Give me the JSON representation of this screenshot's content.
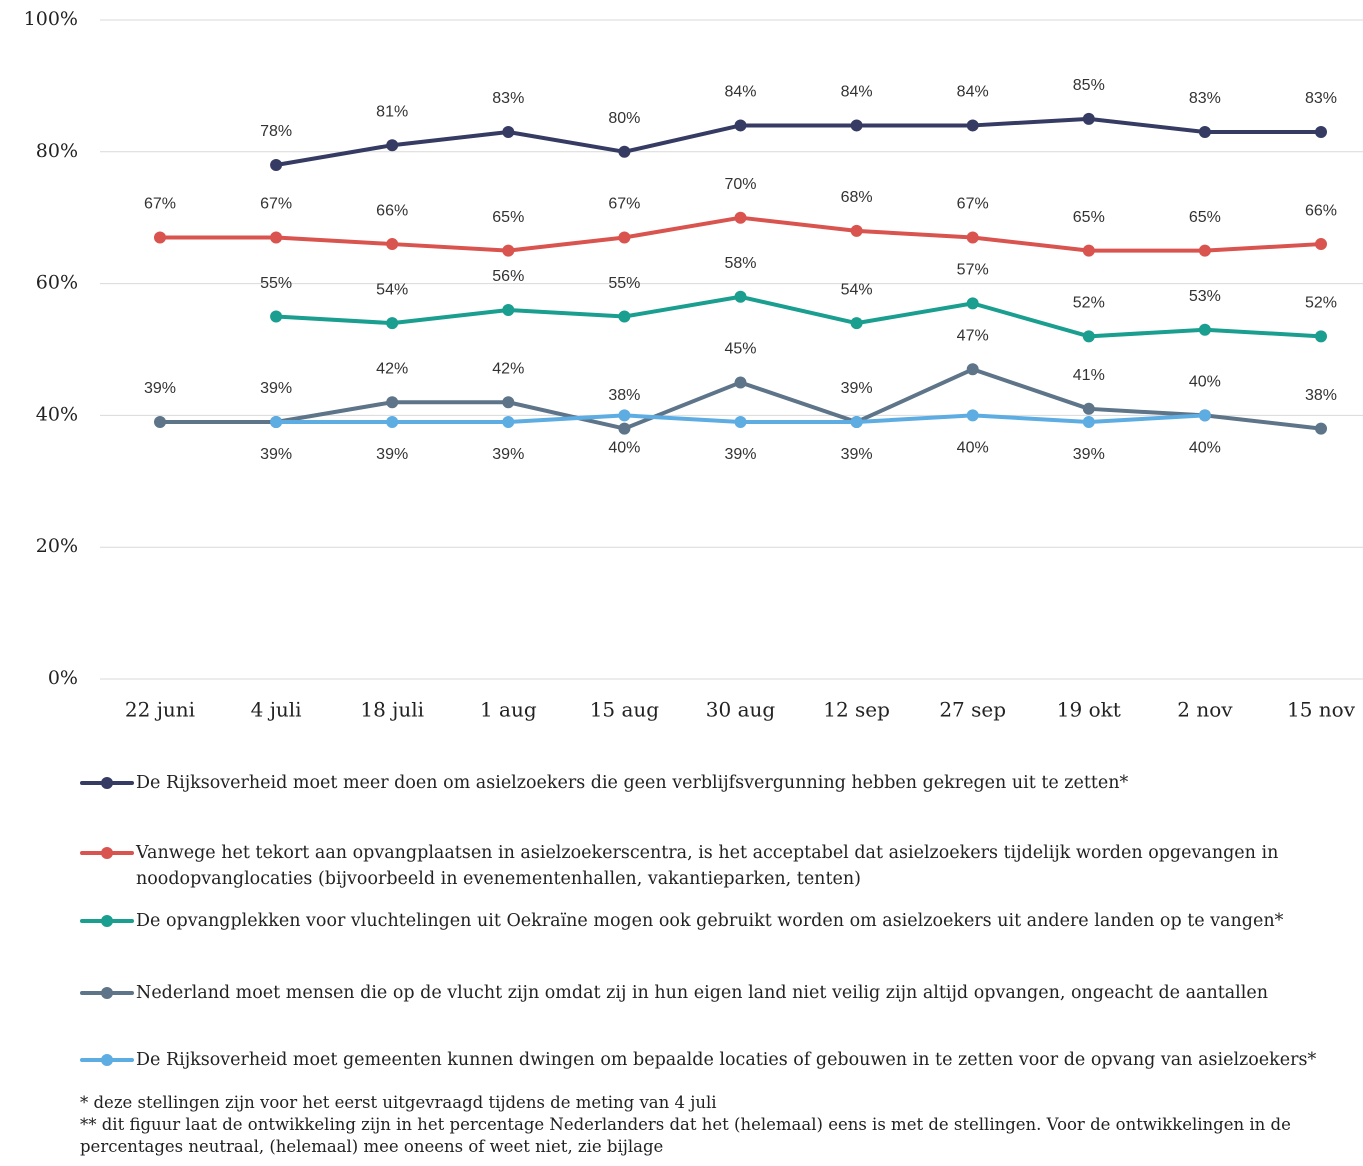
{
  "chart_data": {
    "type": "line",
    "categories": [
      "22 juni",
      "4 juli",
      "18 juli",
      "1 aug",
      "15 aug",
      "30 aug",
      "12 sep",
      "27 sep",
      "19 okt",
      "2 nov",
      "15 nov"
    ],
    "ylim": [
      0,
      100
    ],
    "yticks": [
      {
        "value": 0,
        "label": "0%"
      },
      {
        "value": 20,
        "label": "20%"
      },
      {
        "value": 40,
        "label": "40%"
      },
      {
        "value": 60,
        "label": "60%"
      },
      {
        "value": 80,
        "label": "80%"
      },
      {
        "value": 100,
        "label": "100%"
      }
    ],
    "grid": true,
    "series": [
      {
        "name": "De Rijksoverheid moet meer doen om asielzoekers die geen verblijfsvergunning hebben gekregen uit te zetten*",
        "color": "#363b63",
        "values": [
          null,
          78,
          81,
          83,
          80,
          84,
          84,
          84,
          85,
          83,
          83
        ],
        "value_labels": [
          null,
          "78%",
          "81%",
          "83%",
          "80%",
          "84%",
          "84%",
          "84%",
          "85%",
          "83%",
          "83%"
        ]
      },
      {
        "name": "Vanwege het tekort aan opvangplaatsen in asielzoekerscentra, is het acceptabel dat asielzoekers tijdelijk worden opgevangen in noodopvanglocaties (bijvoorbeeld in evenementenhallen, vakantieparken, tenten)",
        "color": "#d9534f",
        "values": [
          67,
          67,
          66,
          65,
          67,
          70,
          68,
          67,
          65,
          65,
          66
        ],
        "value_labels": [
          "67%",
          "67%",
          "66%",
          "65%",
          "67%",
          "70%",
          "68%",
          "67%",
          "65%",
          "65%",
          "66%"
        ]
      },
      {
        "name": "De opvangplekken voor vluchtelingen uit Oekraïne mogen ook gebruikt worden om asielzoekers uit andere landen op te vangen*",
        "color": "#1a9e8f",
        "values": [
          null,
          55,
          54,
          56,
          55,
          58,
          54,
          57,
          52,
          53,
          52
        ],
        "value_labels": [
          null,
          "55%",
          "54%",
          "56%",
          "55%",
          "58%",
          "54%",
          "57%",
          "52%",
          "53%",
          "52%"
        ]
      },
      {
        "name": "Nederland moet mensen die op de vlucht zijn omdat zij in hun eigen land niet veilig zijn altijd opvangen, ongeacht de aantallen",
        "color": "#5d7489",
        "values": [
          39,
          39,
          42,
          42,
          38,
          45,
          39,
          47,
          41,
          40,
          38
        ],
        "value_labels": [
          "39%",
          "39%",
          "42%",
          "42%",
          "38%",
          "45%",
          "39%",
          "47%",
          "41%",
          "40%",
          "38%"
        ]
      },
      {
        "name": "De Rijksoverheid moet gemeenten kunnen dwingen om bepaalde locaties of gebouwen in te zetten voor de opvang van asielzoekers*",
        "color": "#5dade2",
        "values": [
          null,
          39,
          39,
          39,
          40,
          39,
          39,
          40,
          39,
          40,
          null
        ],
        "value_labels": [
          null,
          "39%",
          "39%",
          "39%",
          "40%",
          "39%",
          "39%",
          "40%",
          "39%",
          "40%",
          null
        ]
      }
    ]
  },
  "footnotes": [
    "* deze stellingen zijn voor het eerst uitgevraagd tijdens de meting van 4 juli",
    "** dit figuur laat de ontwikkeling zijn in het percentage Nederlanders dat het (helemaal) eens is met de stellingen. Voor de ontwikkelingen in de percentages neutraal, (helemaal) mee oneens of weet niet, zie bijlage"
  ]
}
